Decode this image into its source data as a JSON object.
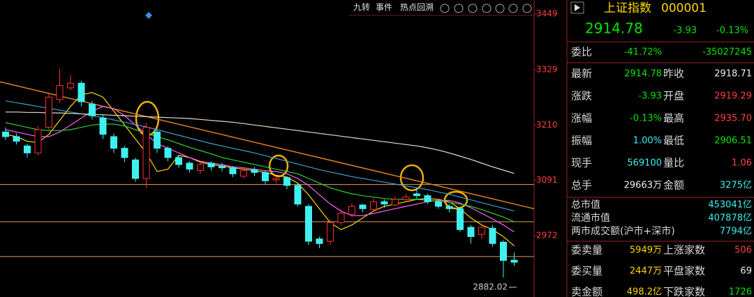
{
  "toolbar": {
    "buttons": [
      "九转",
      "事件",
      "热点回溯"
    ]
  },
  "chart_data": {
    "type": "candlestick",
    "ylim": [
      2840,
      3479
    ],
    "yticks": [
      3449,
      3329,
      3210,
      3091,
      2972
    ],
    "hlines": [
      3082,
      3002,
      2927
    ],
    "trendline": [
      3303,
      3030
    ],
    "open": [
      3195,
      3185,
      3165,
      3150,
      3205,
      3265,
      3290,
      3300,
      3255,
      3225,
      3185,
      3160,
      3135,
      3095,
      3195,
      3160,
      3140,
      3128,
      3112,
      3128,
      3122,
      3118,
      3100,
      3114,
      3108,
      3092,
      3097,
      3080,
      3035,
      2965,
      2960,
      3000,
      3018,
      3038,
      3028,
      3045,
      3038,
      3050,
      3062,
      3058,
      3045,
      3035,
      3030,
      2990,
      2975,
      2988,
      2958,
      2919.29
    ],
    "high": [
      3205,
      3192,
      3170,
      3208,
      3280,
      3330,
      3318,
      3305,
      3262,
      3232,
      3192,
      3165,
      3140,
      3215,
      3200,
      3165,
      3145,
      3132,
      3130,
      3132,
      3128,
      3122,
      3118,
      3120,
      3112,
      3100,
      3100,
      3085,
      3040,
      2970,
      3005,
      3028,
      3042,
      3040,
      3052,
      3050,
      3056,
      3062,
      3075,
      3062,
      3050,
      3040,
      3035,
      2995,
      2995,
      2995,
      2962,
      2935.7
    ],
    "low": [
      3178,
      3168,
      3140,
      3145,
      3200,
      3258,
      3285,
      3250,
      3222,
      3180,
      3150,
      3130,
      3088,
      3075,
      3150,
      3132,
      3118,
      3108,
      3105,
      3112,
      3110,
      3098,
      3095,
      3100,
      3082,
      3085,
      3072,
      3035,
      2952,
      2945,
      2952,
      2995,
      3012,
      3022,
      3025,
      3032,
      3035,
      3046,
      3050,
      3040,
      3030,
      3022,
      2980,
      2955,
      2965,
      2948,
      2882.02,
      2906.51
    ],
    "close": [
      3185,
      3175,
      3150,
      3200,
      3270,
      3295,
      3300,
      3260,
      3230,
      3190,
      3160,
      3140,
      3095,
      3205,
      3160,
      3140,
      3125,
      3115,
      3125,
      3120,
      3118,
      3105,
      3112,
      3108,
      3090,
      3095,
      3080,
      3040,
      2960,
      2955,
      3000,
      3020,
      3035,
      3030,
      3045,
      3040,
      3050,
      3055,
      3058,
      3045,
      3035,
      3030,
      2985,
      2970,
      2990,
      2955,
      2918.71,
      2914.78
    ],
    "lines": [
      {
        "color": "#ffd700",
        "values": [
          3190,
          3185,
          3175,
          3172,
          3190,
          3220,
          3250,
          3275,
          3280,
          3270,
          3240,
          3210,
          3180,
          3150,
          3110,
          3115,
          3145,
          3140,
          3130,
          3125,
          3122,
          3118,
          3115,
          3112,
          3108,
          3102,
          3098,
          3085,
          3060,
          3030,
          3000,
          2985,
          2995,
          3010,
          3025,
          3035,
          3040,
          3045,
          3050,
          3052,
          3050,
          3045,
          3030,
          3010,
          2995,
          2985,
          2970,
          2950
        ]
      },
      {
        "color": "#ff60ff",
        "values": [
          3200,
          3195,
          3190,
          3185,
          3185,
          3195,
          3210,
          3225,
          3240,
          3250,
          3245,
          3230,
          3210,
          3190,
          3170,
          3160,
          3150,
          3140,
          3132,
          3128,
          3125,
          3120,
          3118,
          3115,
          3112,
          3110,
          3105,
          3095,
          3080,
          3060,
          3040,
          3025,
          3015,
          3015,
          3020,
          3025,
          3030,
          3035,
          3040,
          3045,
          3048,
          3048,
          3042,
          3032,
          3020,
          3008,
          2995,
          2980
        ]
      },
      {
        "color": "#30d030",
        "values": [
          3215,
          3210,
          3205,
          3200,
          3198,
          3198,
          3200,
          3205,
          3210,
          3212,
          3212,
          3208,
          3200,
          3192,
          3185,
          3178,
          3170,
          3162,
          3155,
          3148,
          3140,
          3135,
          3130,
          3125,
          3120,
          3115,
          3110,
          3105,
          3095,
          3085,
          3075,
          3068,
          3062,
          3058,
          3055,
          3052,
          3050,
          3050,
          3050,
          3048,
          3046,
          3044,
          3040,
          3035,
          3028,
          3020,
          3012,
          3002
        ]
      },
      {
        "color": "#3aa0d0",
        "values": [
          3262,
          3258,
          3254,
          3250,
          3246,
          3242,
          3238,
          3234,
          3230,
          3226,
          3221,
          3216,
          3211,
          3206,
          3200,
          3194,
          3188,
          3182,
          3176,
          3170,
          3165,
          3160,
          3155,
          3150,
          3144,
          3138,
          3132,
          3126,
          3120,
          3114,
          3109,
          3104,
          3099,
          3095,
          3091,
          3087,
          3083,
          3079,
          3075,
          3071,
          3066,
          3061,
          3055,
          3049,
          3043,
          3037,
          3031,
          3025
        ]
      },
      {
        "color": "#e8e0c0",
        "values": [
          3238,
          3238,
          3237,
          3237,
          3236,
          3236,
          3235,
          3234,
          3233,
          3232,
          3231,
          3230,
          3229,
          3228,
          3227,
          3226,
          3225,
          3224,
          3222,
          3220,
          3218,
          3216,
          3213,
          3210,
          3207,
          3204,
          3201,
          3198,
          3195,
          3192,
          3189,
          3186,
          3183,
          3180,
          3177,
          3174,
          3171,
          3168,
          3165,
          3161,
          3156,
          3150,
          3143,
          3136,
          3128,
          3120,
          3113,
          3106
        ]
      }
    ]
  },
  "panel": {
    "name": "上证指数",
    "code": "000001",
    "price": "2914.78",
    "change": "-3.93",
    "change_pct": "-0.13%",
    "weibi": {
      "label": "委比",
      "pct": "-41.72%",
      "diff": "-35027245"
    },
    "quotes": [
      [
        "最新",
        "2914.78",
        "昨收",
        "2918.71"
      ],
      [
        "涨跌",
        "-3.93",
        "开盘",
        "2919.29"
      ],
      [
        "涨幅",
        "-0.13%",
        "最高",
        "2935.70"
      ],
      [
        "振幅",
        "1.00%",
        "最低",
        "2906.51"
      ],
      [
        "现手",
        "569100",
        "量比",
        "1.06"
      ],
      [
        "总手",
        "29663万",
        "金额",
        "3275亿"
      ]
    ],
    "market": [
      [
        "总市值",
        "453041亿"
      ],
      [
        "流通市值",
        "407878亿"
      ],
      [
        "两市成交额(沪市+深市)",
        "7794亿"
      ]
    ],
    "orders": [
      [
        "委卖量",
        "5949万",
        "上涨家数",
        "506"
      ],
      [
        "委买量",
        "2447万",
        "平盘家数",
        "69"
      ],
      [
        "卖金额",
        "498.2亿",
        "下跌家数",
        "1726"
      ]
    ]
  }
}
